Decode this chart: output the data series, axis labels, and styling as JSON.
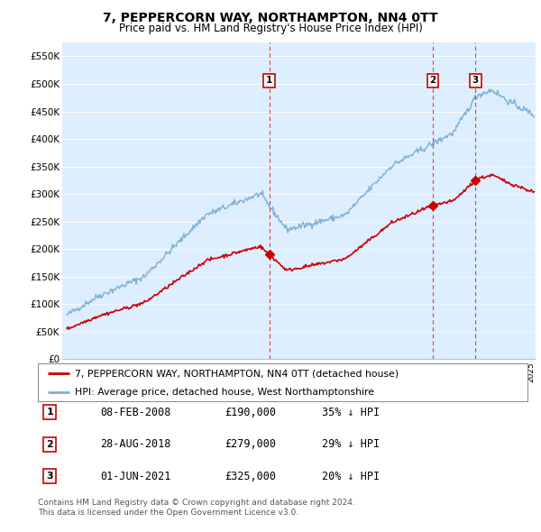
{
  "title": "7, PEPPERCORN WAY, NORTHAMPTON, NN4 0TT",
  "subtitle": "Price paid vs. HM Land Registry's House Price Index (HPI)",
  "ylabel_ticks": [
    "£0",
    "£50K",
    "£100K",
    "£150K",
    "£200K",
    "£250K",
    "£300K",
    "£350K",
    "£400K",
    "£450K",
    "£500K",
    "£550K"
  ],
  "ytick_vals": [
    0,
    50000,
    100000,
    150000,
    200000,
    250000,
    300000,
    350000,
    400000,
    450000,
    500000,
    550000
  ],
  "ylim": [
    0,
    575000
  ],
  "xlim_start": 1994.7,
  "xlim_end": 2025.3,
  "sale_dates": [
    2008.08,
    2018.66,
    2021.42
  ],
  "sale_prices": [
    190000,
    279000,
    325000
  ],
  "sale_labels": [
    "1",
    "2",
    "3"
  ],
  "sale_date_strs": [
    "08-FEB-2008",
    "28-AUG-2018",
    "01-JUN-2021"
  ],
  "sale_price_strs": [
    "£190,000",
    "£279,000",
    "£325,000"
  ],
  "sale_hpi_strs": [
    "35% ↓ HPI",
    "29% ↓ HPI",
    "20% ↓ HPI"
  ],
  "red_line_color": "#cc0000",
  "blue_line_color": "#7bafd4",
  "blue_fill_color": "#ddeeff",
  "dashed_line_color": "#cc3333",
  "legend_label_red": "7, PEPPERCORN WAY, NORTHAMPTON, NN4 0TT (detached house)",
  "legend_label_blue": "HPI: Average price, detached house, West Northamptonshire",
  "footnote1": "Contains HM Land Registry data © Crown copyright and database right 2024.",
  "footnote2": "This data is licensed under the Open Government Licence v3.0.",
  "background_color": "#ffffff",
  "plot_bg_color": "#ddeeff",
  "grid_color": "#ffffff"
}
